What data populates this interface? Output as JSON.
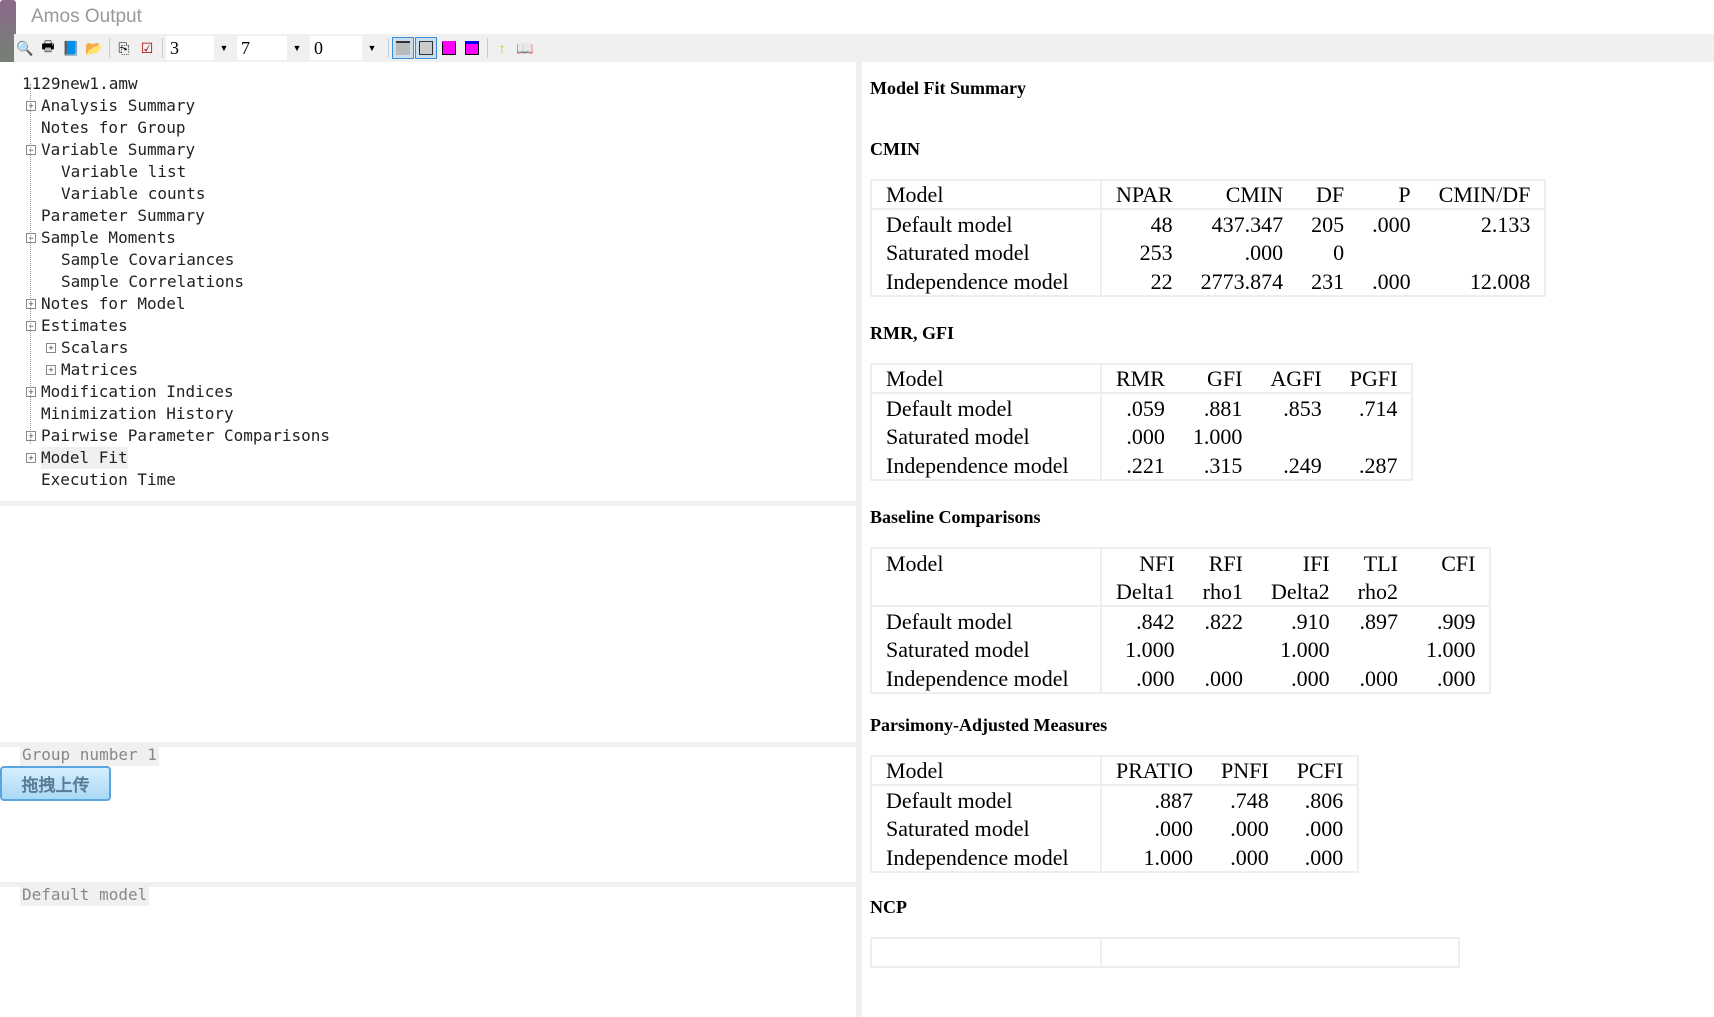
{
  "window": {
    "title": "Amos Output"
  },
  "toolbar": {
    "decimals_1": "3",
    "decimals_2": "7",
    "decimals_3": "0"
  },
  "tree": [
    {
      "label": "1129new1.amw",
      "level": 0,
      "exp": ""
    },
    {
      "label": "Analysis Summary",
      "level": 1,
      "exp": "+"
    },
    {
      "label": "Notes for Group",
      "level": 1,
      "exp": ""
    },
    {
      "label": "Variable Summary",
      "level": 1,
      "exp": "-"
    },
    {
      "label": "Variable list",
      "level": 2,
      "exp": ""
    },
    {
      "label": "Variable counts",
      "level": 2,
      "exp": ""
    },
    {
      "label": "Parameter Summary",
      "level": 1,
      "exp": ""
    },
    {
      "label": "Sample Moments",
      "level": 1,
      "exp": "-"
    },
    {
      "label": "Sample Covariances",
      "level": 2,
      "exp": ""
    },
    {
      "label": "Sample Correlations",
      "level": 2,
      "exp": ""
    },
    {
      "label": "Notes for Model",
      "level": 1,
      "exp": "+"
    },
    {
      "label": "Estimates",
      "level": 1,
      "exp": "-"
    },
    {
      "label": "Scalars",
      "level": 2,
      "exp": "+"
    },
    {
      "label": "Matrices",
      "level": 2,
      "exp": "+"
    },
    {
      "label": "Modification Indices",
      "level": 1,
      "exp": "+"
    },
    {
      "label": "Minimization History",
      "level": 1,
      "exp": ""
    },
    {
      "label": "Pairwise Parameter Comparisons",
      "level": 1,
      "exp": "+"
    },
    {
      "label": "Model Fit",
      "level": 1,
      "exp": "+",
      "selected": true
    },
    {
      "label": "Execution Time",
      "level": 1,
      "exp": ""
    }
  ],
  "groups": {
    "group_label": "Group number 1",
    "model_label": "Default model",
    "upload_button": "拖拽上传"
  },
  "output": {
    "title": "Model Fit Summary",
    "sections": [
      {
        "heading": "CMIN",
        "headers": [
          [
            "Model",
            "NPAR",
            "CMIN",
            "DF",
            "P",
            "CMIN/DF"
          ]
        ],
        "rows": [
          [
            "Default model",
            "48",
            "437.347",
            "205",
            ".000",
            "2.133"
          ],
          [
            "Saturated model",
            "253",
            ".000",
            "0",
            "",
            ""
          ],
          [
            "Independence model",
            "22",
            "2773.874",
            "231",
            ".000",
            "12.008"
          ]
        ]
      },
      {
        "heading": "RMR, GFI",
        "headers": [
          [
            "Model",
            "RMR",
            "GFI",
            "AGFI",
            "PGFI"
          ]
        ],
        "rows": [
          [
            "Default model",
            ".059",
            ".881",
            ".853",
            ".714"
          ],
          [
            "Saturated model",
            ".000",
            "1.000",
            "",
            ""
          ],
          [
            "Independence model",
            ".221",
            ".315",
            ".249",
            ".287"
          ]
        ]
      },
      {
        "heading": "Baseline Comparisons",
        "headers": [
          [
            "Model",
            "NFI",
            "RFI",
            "IFI",
            "TLI",
            "CFI"
          ],
          [
            "",
            "Delta1",
            "rho1",
            "Delta2",
            "rho2",
            ""
          ]
        ],
        "rows": [
          [
            "Default model",
            ".842",
            ".822",
            ".910",
            ".897",
            ".909"
          ],
          [
            "Saturated model",
            "1.000",
            "",
            "1.000",
            "",
            "1.000"
          ],
          [
            "Independence model",
            ".000",
            ".000",
            ".000",
            ".000",
            ".000"
          ]
        ]
      },
      {
        "heading": "Parsimony-Adjusted Measures",
        "headers": [
          [
            "Model",
            "PRATIO",
            "PNFI",
            "PCFI"
          ]
        ],
        "rows": [
          [
            "Default model",
            ".887",
            ".748",
            ".806"
          ],
          [
            "Saturated model",
            ".000",
            ".000",
            ".000"
          ],
          [
            "Independence model",
            "1.000",
            ".000",
            ".000"
          ]
        ]
      },
      {
        "heading": "NCP",
        "headers": [],
        "rows": []
      }
    ]
  }
}
